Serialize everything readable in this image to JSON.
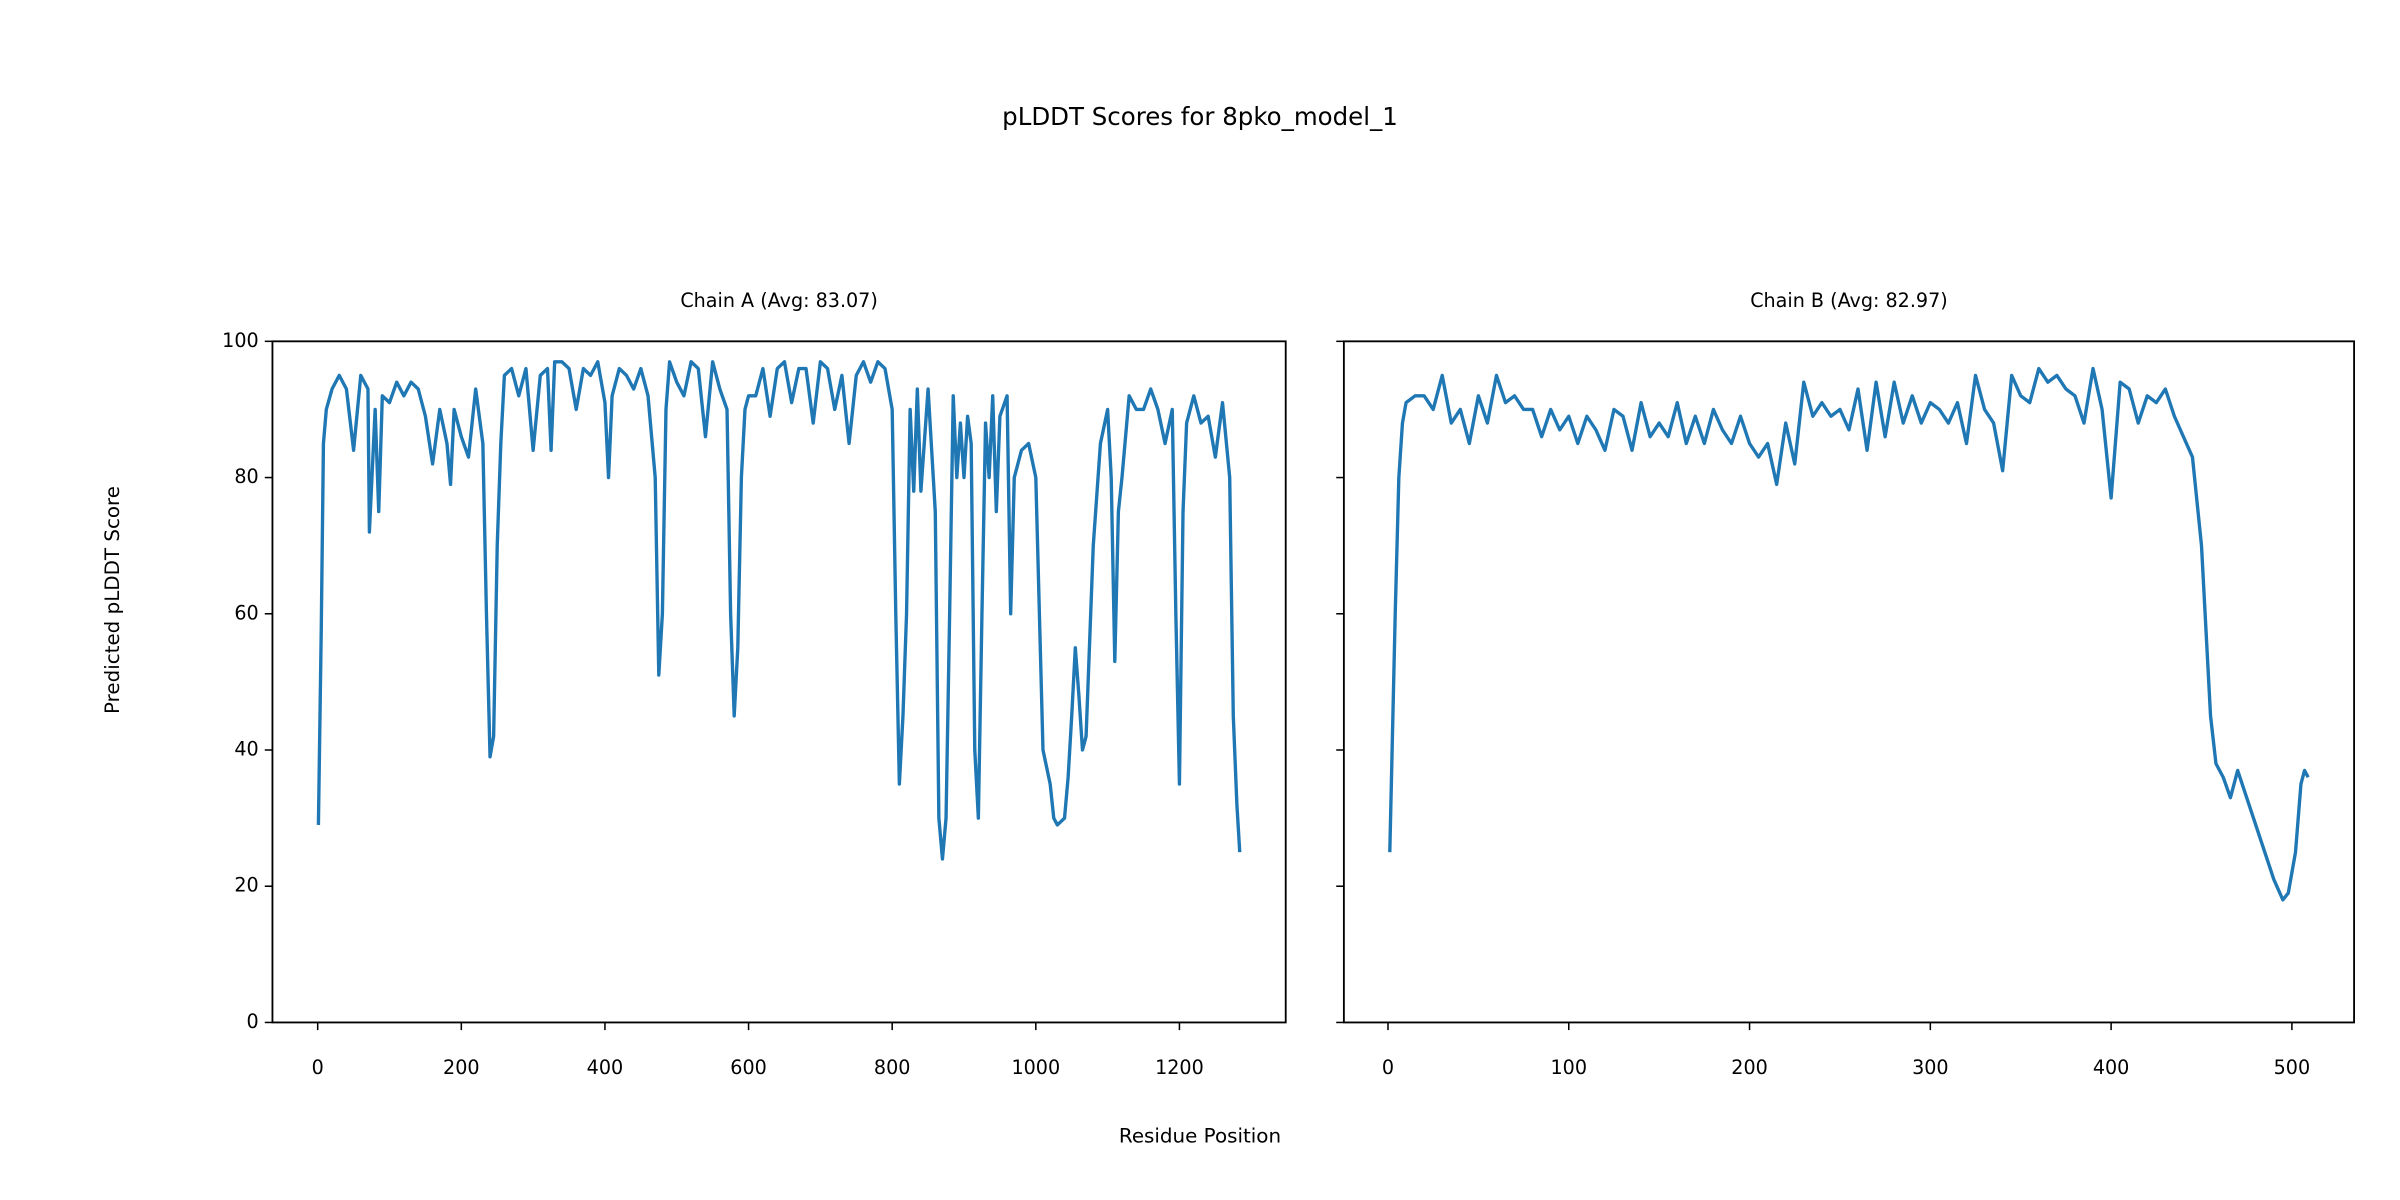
{
  "title": "pLDDT Scores for 8pko_model_1",
  "x_label": "Residue Position",
  "y_label": "Predicted pLDDT Score",
  "chart_data": [
    {
      "type": "line",
      "title": "Chain A (Avg: 83.07)",
      "color": "#1f77b4",
      "xlim": [
        -63,
        1348
      ],
      "ylim": [
        0,
        100
      ],
      "xticks": [
        0,
        200,
        400,
        600,
        800,
        1000,
        1200
      ],
      "yticks": [
        0,
        20,
        40,
        60,
        80,
        100
      ],
      "x": [
        1,
        5,
        8,
        12,
        20,
        30,
        40,
        50,
        60,
        70,
        72,
        80,
        85,
        90,
        100,
        110,
        120,
        130,
        140,
        150,
        160,
        170,
        180,
        185,
        190,
        200,
        210,
        220,
        230,
        235,
        240,
        245,
        250,
        255,
        260,
        270,
        280,
        290,
        300,
        310,
        320,
        325,
        330,
        340,
        350,
        360,
        370,
        380,
        390,
        400,
        405,
        410,
        420,
        430,
        440,
        450,
        460,
        470,
        475,
        480,
        485,
        490,
        500,
        510,
        520,
        530,
        540,
        550,
        560,
        570,
        575,
        580,
        585,
        590,
        595,
        600,
        610,
        620,
        630,
        640,
        650,
        660,
        670,
        680,
        690,
        700,
        710,
        720,
        730,
        740,
        750,
        760,
        770,
        780,
        790,
        800,
        805,
        810,
        815,
        820,
        825,
        830,
        835,
        840,
        850,
        860,
        865,
        870,
        875,
        880,
        885,
        890,
        895,
        900,
        905,
        910,
        915,
        920,
        925,
        930,
        935,
        940,
        945,
        950,
        960,
        965,
        970,
        980,
        990,
        1000,
        1010,
        1020,
        1025,
        1030,
        1040,
        1045,
        1050,
        1055,
        1060,
        1065,
        1070,
        1080,
        1090,
        1100,
        1105,
        1110,
        1115,
        1120,
        1130,
        1140,
        1150,
        1160,
        1170,
        1180,
        1190,
        1195,
        1200,
        1205,
        1210,
        1220,
        1230,
        1240,
        1250,
        1260,
        1270,
        1275,
        1280,
        1284
      ],
      "values": [
        29,
        58,
        85,
        90,
        93,
        95,
        93,
        84,
        95,
        93,
        72,
        90,
        75,
        92,
        91,
        94,
        92,
        94,
        93,
        89,
        82,
        90,
        85,
        79,
        90,
        86,
        83,
        93,
        85,
        60,
        39,
        42,
        70,
        85,
        95,
        96,
        92,
        96,
        84,
        95,
        96,
        84,
        97,
        97,
        96,
        90,
        96,
        95,
        97,
        91,
        80,
        92,
        96,
        95,
        93,
        96,
        92,
        80,
        51,
        60,
        90,
        97,
        94,
        92,
        97,
        96,
        86,
        97,
        93,
        90,
        60,
        45,
        55,
        80,
        90,
        92,
        92,
        96,
        89,
        96,
        97,
        91,
        96,
        96,
        88,
        97,
        96,
        90,
        95,
        85,
        95,
        97,
        94,
        97,
        96,
        90,
        60,
        35,
        45,
        60,
        90,
        78,
        93,
        78,
        93,
        75,
        30,
        24,
        30,
        60,
        92,
        80,
        88,
        80,
        89,
        85,
        40,
        30,
        60,
        88,
        80,
        92,
        75,
        89,
        92,
        60,
        80,
        84,
        85,
        80,
        40,
        35,
        30,
        29,
        30,
        36,
        45,
        55,
        48,
        40,
        42,
        70,
        85,
        90,
        80,
        53,
        75,
        80,
        92,
        90,
        90,
        93,
        90,
        85,
        90,
        60,
        35,
        75,
        88,
        92,
        88,
        89,
        83,
        91,
        80,
        45,
        32,
        25
      ]
    },
    {
      "type": "line",
      "title": "Chain B (Avg: 82.97)",
      "color": "#1f77b4",
      "xlim": [
        -24.4,
        534.4
      ],
      "ylim": [
        0,
        100
      ],
      "xticks": [
        0,
        100,
        200,
        300,
        400,
        500
      ],
      "x": [
        1,
        4,
        6,
        8,
        10,
        15,
        20,
        25,
        30,
        35,
        40,
        45,
        50,
        55,
        60,
        65,
        70,
        75,
        80,
        85,
        90,
        95,
        100,
        105,
        110,
        115,
        120,
        125,
        130,
        135,
        140,
        145,
        150,
        155,
        160,
        165,
        170,
        175,
        180,
        185,
        190,
        195,
        200,
        205,
        210,
        215,
        220,
        225,
        230,
        235,
        240,
        245,
        250,
        255,
        260,
        265,
        270,
        275,
        280,
        285,
        290,
        295,
        300,
        305,
        310,
        315,
        320,
        325,
        330,
        335,
        340,
        345,
        350,
        355,
        360,
        365,
        370,
        375,
        380,
        385,
        390,
        395,
        400,
        405,
        410,
        415,
        420,
        425,
        430,
        435,
        440,
        445,
        450,
        455,
        458,
        462,
        466,
        470,
        475,
        480,
        485,
        490,
        495,
        498,
        502,
        505,
        507,
        509
      ],
      "values": [
        25,
        60,
        80,
        88,
        91,
        92,
        92,
        90,
        95,
        88,
        90,
        85,
        92,
        88,
        95,
        91,
        92,
        90,
        90,
        86,
        90,
        87,
        89,
        85,
        89,
        87,
        84,
        90,
        89,
        84,
        91,
        86,
        88,
        86,
        91,
        85,
        89,
        85,
        90,
        87,
        85,
        89,
        85,
        83,
        85,
        79,
        88,
        82,
        94,
        89,
        91,
        89,
        90,
        87,
        93,
        84,
        94,
        86,
        94,
        88,
        92,
        88,
        91,
        90,
        88,
        91,
        85,
        95,
        90,
        88,
        81,
        95,
        92,
        91,
        96,
        94,
        95,
        93,
        92,
        88,
        96,
        90,
        77,
        94,
        93,
        88,
        92,
        91,
        93,
        89,
        86,
        83,
        70,
        45,
        38,
        36,
        33,
        37,
        33,
        29,
        25,
        21,
        18,
        19,
        25,
        35,
        37,
        36
      ]
    }
  ]
}
